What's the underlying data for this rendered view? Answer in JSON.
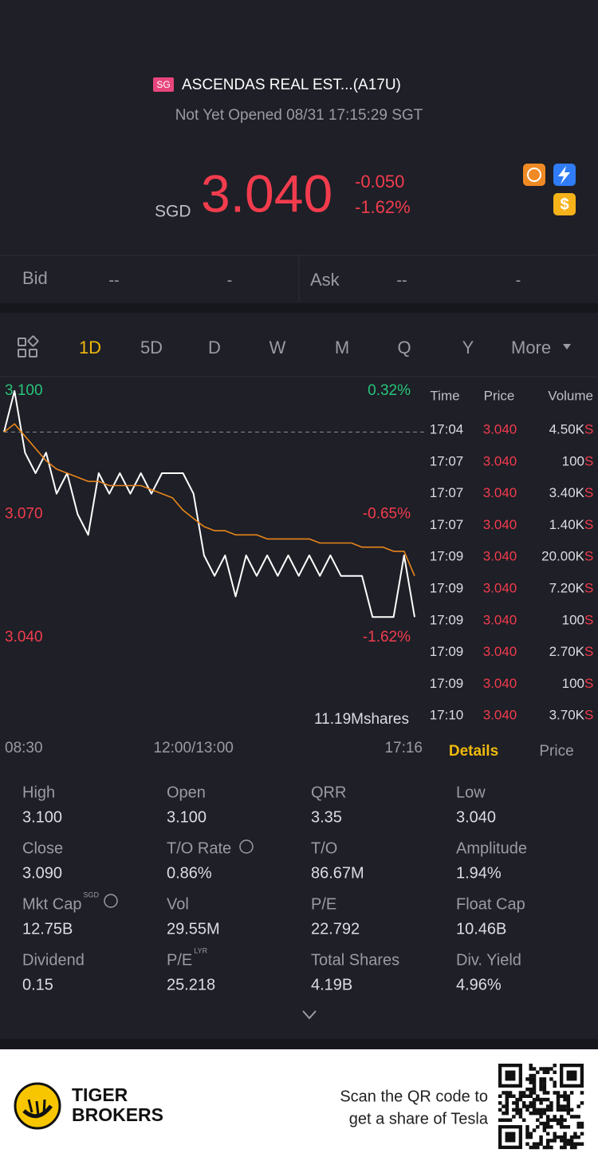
{
  "header": {
    "market_badge": "SG",
    "name": "ASCENDAS REAL EST...(A17U)",
    "status": "Not Yet Opened 08/31 17:15:29 SGT"
  },
  "quote": {
    "currency": "SGD",
    "price": "3.040",
    "change": "-0.050",
    "change_pct": "-1.62%",
    "icon_text": "$"
  },
  "bidask": {
    "bid_label": "Bid",
    "bid_price": "--",
    "bid_size": "-",
    "ask_label": "Ask",
    "ask_price": "--",
    "ask_size": "-"
  },
  "tabs": [
    "1D",
    "5D",
    "D",
    "W",
    "M",
    "Q",
    "Y",
    "More"
  ],
  "chart_data": {
    "type": "line",
    "categories": [
      "08:30",
      null,
      null,
      null,
      null,
      null,
      null,
      null,
      null,
      null,
      null,
      null,
      null,
      null,
      null,
      null,
      null,
      null,
      "12:00/13:00",
      null,
      null,
      null,
      null,
      null,
      null,
      null,
      null,
      null,
      null,
      null,
      null,
      null,
      null,
      null,
      null,
      null,
      null,
      null,
      null,
      "17:16"
    ],
    "series": [
      {
        "color": "#ffffff",
        "values": [
          3.09,
          3.1,
          3.085,
          3.08,
          3.085,
          3.075,
          3.08,
          3.07,
          3.065,
          3.08,
          3.075,
          3.08,
          3.075,
          3.08,
          3.075,
          3.08,
          3.08,
          3.08,
          3.075,
          3.06,
          3.055,
          3.06,
          3.05,
          3.06,
          3.055,
          3.06,
          3.055,
          3.06,
          3.055,
          3.06,
          3.055,
          3.06,
          3.055,
          3.055,
          3.055,
          3.045,
          3.045,
          3.045,
          3.06,
          3.045
        ]
      },
      {
        "color": "#e8861a",
        "values": [
          3.09,
          3.092,
          3.089,
          3.086,
          3.083,
          3.081,
          3.08,
          3.079,
          3.078,
          3.078,
          3.077,
          3.077,
          3.077,
          3.077,
          3.076,
          3.075,
          3.074,
          3.071,
          3.069,
          3.067,
          3.066,
          3.066,
          3.065,
          3.065,
          3.065,
          3.064,
          3.064,
          3.064,
          3.064,
          3.064,
          3.063,
          3.063,
          3.063,
          3.063,
          3.062,
          3.062,
          3.062,
          3.061,
          3.061,
          3.055
        ]
      }
    ],
    "ylim": [
      3.04,
      3.1
    ],
    "yticks": [
      {
        "value": 3.1,
        "label": "3.100"
      },
      {
        "value": 3.07,
        "label": "3.070"
      },
      {
        "value": 3.04,
        "label": "3.040"
      }
    ],
    "y2lim": [
      -1.62,
      0.32
    ],
    "y2ticks": [
      {
        "value": 0.32,
        "label": "0.32%"
      },
      {
        "value": -0.65,
        "label": "-0.65%"
      },
      {
        "value": -1.62,
        "label": "-1.62%"
      }
    ],
    "volume_label": "11.19Mshares"
  },
  "trades": {
    "headers": [
      "Time",
      "Price",
      "Volume"
    ],
    "rows": [
      [
        "17:04",
        "3.040",
        "4.50K",
        "S"
      ],
      [
        "17:07",
        "3.040",
        "100",
        "S"
      ],
      [
        "17:07",
        "3.040",
        "3.40K",
        "S"
      ],
      [
        "17:07",
        "3.040",
        "1.40K",
        "S"
      ],
      [
        "17:09",
        "3.040",
        "20.00K",
        "S"
      ],
      [
        "17:09",
        "3.040",
        "7.20K",
        "S"
      ],
      [
        "17:09",
        "3.040",
        "100",
        "S"
      ],
      [
        "17:09",
        "3.040",
        "2.70K",
        "S"
      ],
      [
        "17:09",
        "3.040",
        "100",
        "S"
      ],
      [
        "17:10",
        "3.040",
        "3.70K",
        "S"
      ]
    ]
  },
  "side_tabs": [
    "Details",
    "Price"
  ],
  "details": [
    {
      "label": "High",
      "value": "3.100"
    },
    {
      "label": "Open",
      "value": "3.100"
    },
    {
      "label": "QRR",
      "value": "3.35"
    },
    {
      "label": "Low",
      "value": "3.040"
    },
    {
      "label": "Close",
      "value": "3.090"
    },
    {
      "label": "T/O Rate",
      "value": "0.86%"
    },
    {
      "label": "T/O",
      "value": "86.67M"
    },
    {
      "label": "Amplitude",
      "value": "1.94%"
    },
    {
      "label": "Mkt Cap",
      "sup": "SGD",
      "value": "12.75B"
    },
    {
      "label": "Vol",
      "value": "29.55M"
    },
    {
      "label": "P/E",
      "value": "22.792"
    },
    {
      "label": "Float Cap",
      "value": "10.46B"
    },
    {
      "label": "Dividend",
      "value": "0.15"
    },
    {
      "label": "P/E",
      "sup": "LYR",
      "value": "25.218"
    },
    {
      "label": "Total Shares",
      "value": "4.19B"
    },
    {
      "label": "Div. Yield",
      "value": "4.96%"
    }
  ],
  "footer": {
    "brand_line1": "TIGER",
    "brand_line2": "BROKERS",
    "promo_line1": "Scan the QR code to",
    "promo_line2": "get a share of Tesla"
  }
}
